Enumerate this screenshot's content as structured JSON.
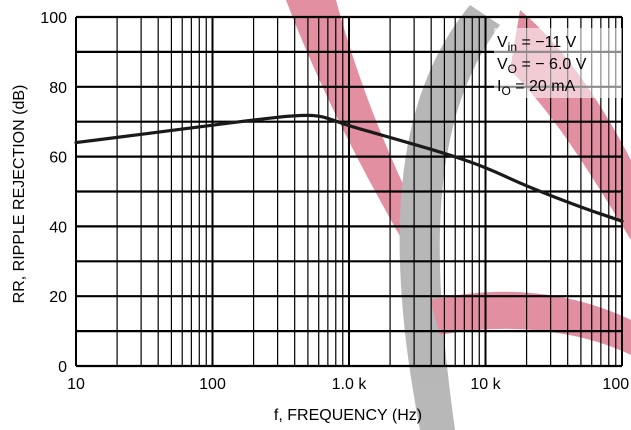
{
  "chart_data": {
    "type": "line",
    "title": "",
    "xlabel": "f, FREQUENCY (Hz)",
    "ylabel": "RR, RIPPLE REJECTION (dB)",
    "xscale": "log",
    "xlim": [
      10,
      100000
    ],
    "ylim": [
      0,
      100
    ],
    "x_tick_labels": [
      "10",
      "100",
      "1.0 k",
      "10 k",
      "100 k"
    ],
    "y_tick_labels": [
      "0",
      "20",
      "40",
      "60",
      "80",
      "100"
    ],
    "grid": true,
    "conditions": {
      "vin_sym": "V",
      "vin_sub": "in",
      "vin_val": " = −11 V",
      "vo_sym": "V",
      "vo_sub": "O",
      "vo_val": " = − 6.0 V",
      "io_sym": "I",
      "io_sub": "O",
      "io_val": " = 20 mA"
    },
    "series": [
      {
        "values": [
          [
            10,
            64
          ],
          [
            20,
            65.5
          ],
          [
            50,
            67.5
          ],
          [
            100,
            69
          ],
          [
            200,
            70.5
          ],
          [
            400,
            71.8
          ],
          [
            600,
            71.8
          ],
          [
            800,
            70.2
          ],
          [
            1000,
            68.8
          ],
          [
            2000,
            65.5
          ],
          [
            5000,
            61
          ],
          [
            10000,
            57
          ],
          [
            20000,
            51.5
          ],
          [
            50000,
            45.5
          ],
          [
            100000,
            41.5
          ]
        ]
      }
    ]
  },
  "colors": {
    "line": "#1a1a1a",
    "grid": "#000000",
    "watermark_red": "#d6607a",
    "watermark_gray": "#9a9a9a"
  }
}
